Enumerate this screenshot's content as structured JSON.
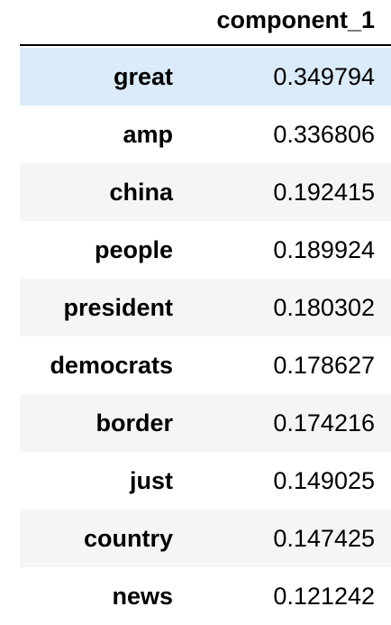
{
  "table": {
    "column_header": "component_1",
    "rows": [
      {
        "label": "great",
        "value": "0.349794"
      },
      {
        "label": "amp",
        "value": "0.336806"
      },
      {
        "label": "china",
        "value": "0.192415"
      },
      {
        "label": "people",
        "value": "0.189924"
      },
      {
        "label": "president",
        "value": "0.180302"
      },
      {
        "label": "democrats",
        "value": "0.178627"
      },
      {
        "label": "border",
        "value": "0.174216"
      },
      {
        "label": "just",
        "value": "0.149025"
      },
      {
        "label": "country",
        "value": "0.147425"
      },
      {
        "label": "news",
        "value": "0.121242"
      }
    ],
    "hovered_row": 0,
    "colors": {
      "hover": "#dcebf9",
      "stripe": "#f5f5f5",
      "background": "#ffffff",
      "text": "#000000"
    }
  }
}
